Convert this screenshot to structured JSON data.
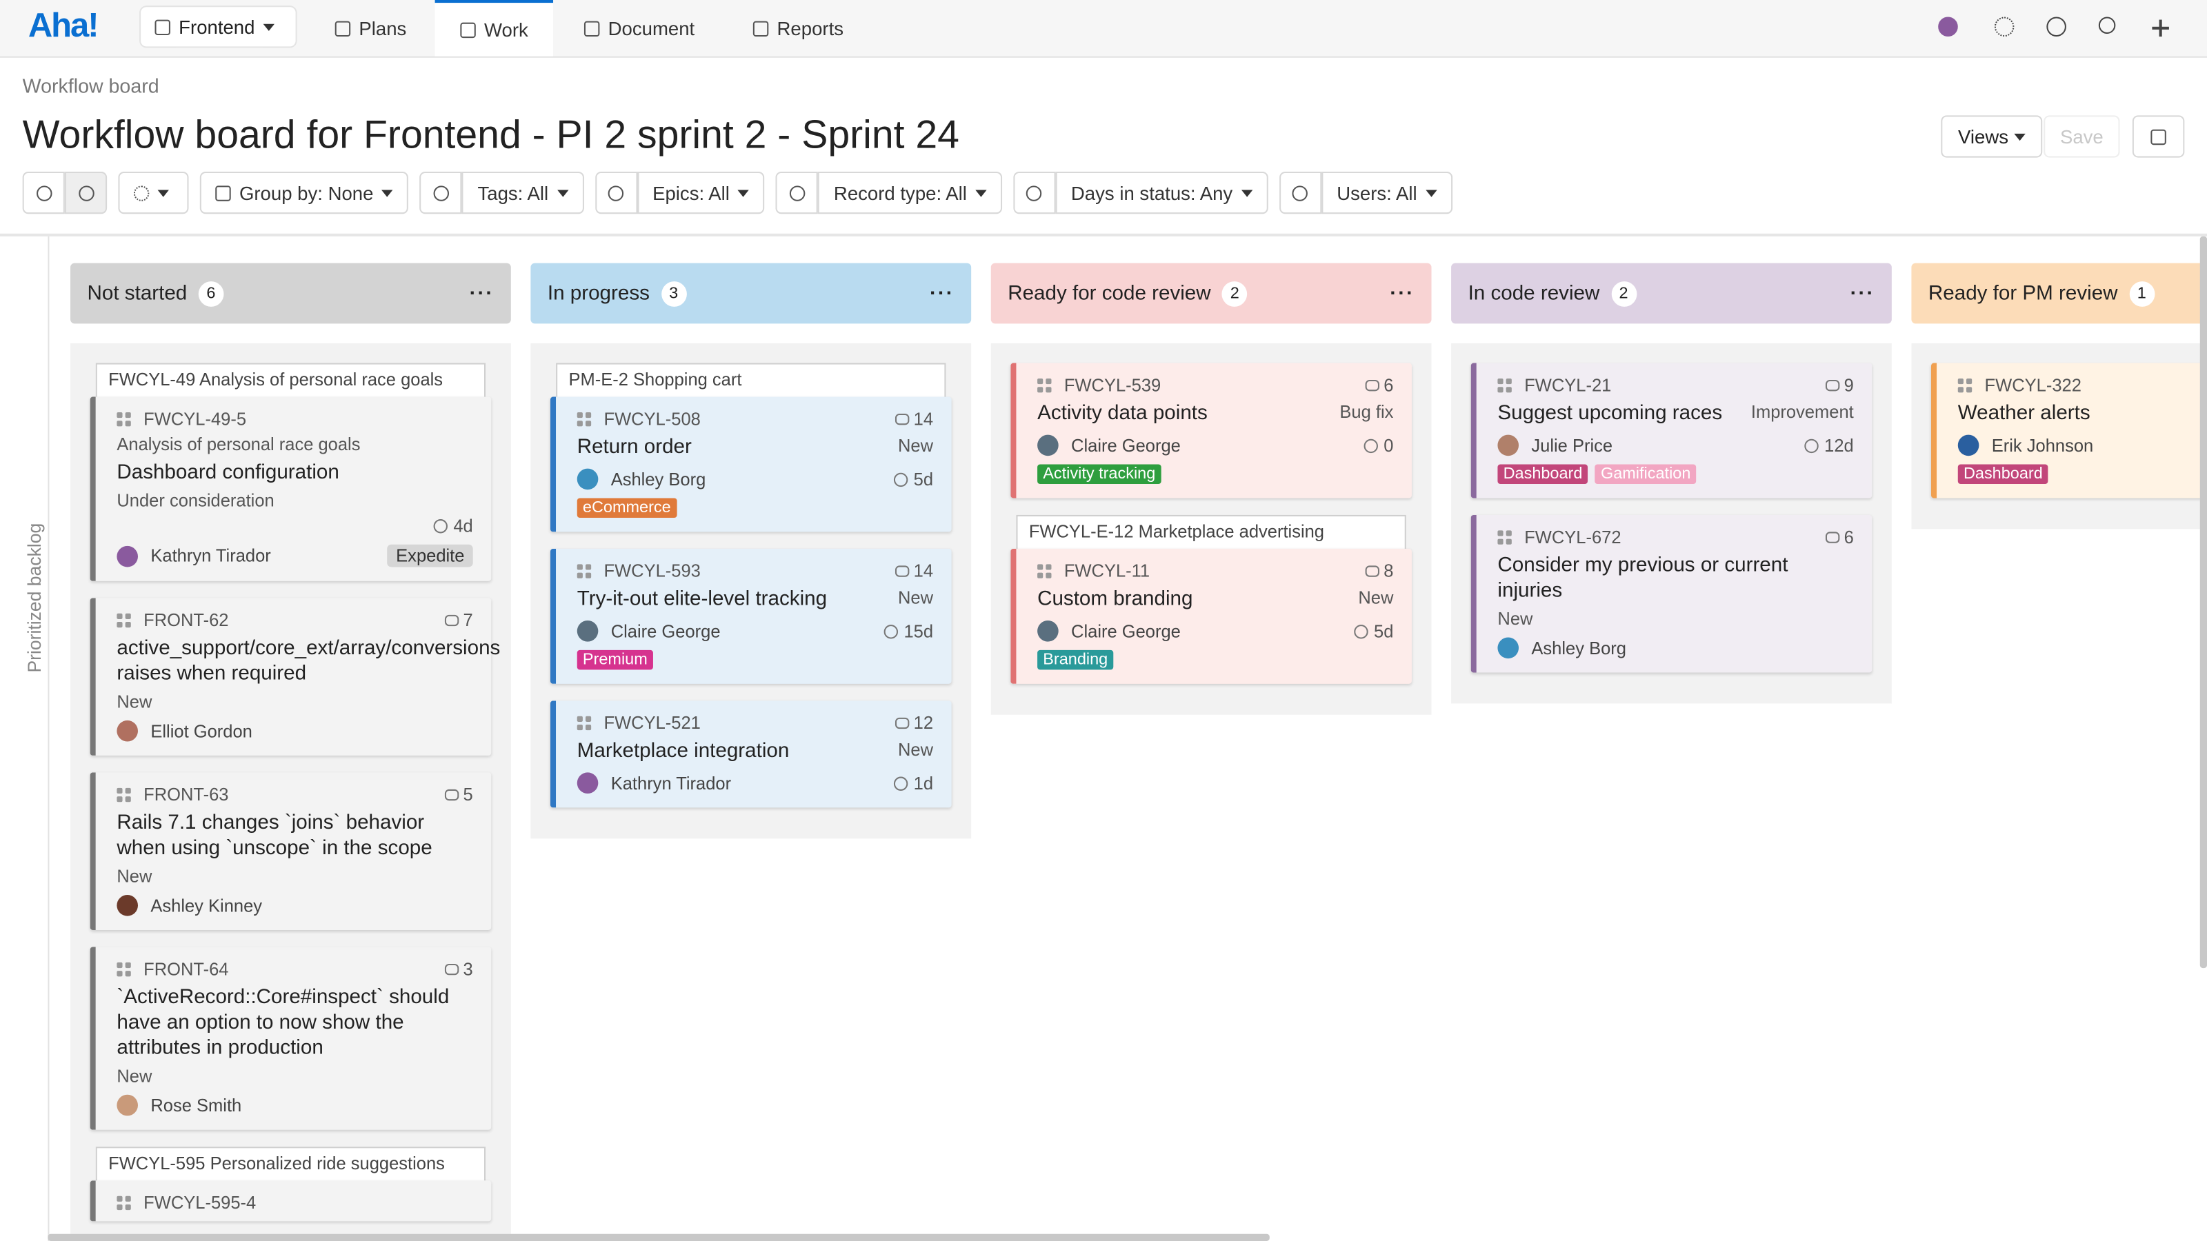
{
  "nav": {
    "logo": "Aha!",
    "workspace": "Frontend",
    "tabs": [
      "Plans",
      "Work",
      "Document",
      "Reports"
    ],
    "active_tab": 1
  },
  "header": {
    "breadcrumb": "Workflow board",
    "title": "Workflow board for Frontend - PI 2 sprint 2 - Sprint 24",
    "views": "Views",
    "save": "Save"
  },
  "filters": [
    "Group by: None",
    "Tags: All",
    "Epics: All",
    "Record type: All",
    "Days in status: Any",
    "Users: All"
  ],
  "sidebar": "Prioritized backlog",
  "columns": [
    {
      "name": "Not started",
      "count": "6",
      "header_color": "#d3d3d3",
      "card_color": "#f3f3f3",
      "accent": "#777777",
      "groups": [
        {
          "parent": "FWCYL-49 Analysis of personal race goals",
          "cards": [
            {
              "id": "FWCYL-49-5",
              "subtitle": "Analysis of personal race goals",
              "title": "Dashboard configuration",
              "status": "Under consideration",
              "days": "4d",
              "assignee": "Kathryn Tirador",
              "avatar": "#8a5a9e",
              "badge": "Expedite"
            }
          ]
        },
        {
          "cards": [
            {
              "id": "FRONT-62",
              "comments": "7",
              "title": "active_support/core_ext/array/conversions raises when required",
              "status": "New",
              "assignee": "Elliot Gordon",
              "avatar": "#b07060"
            },
            {
              "id": "FRONT-63",
              "comments": "5",
              "title": "Rails 7.1 changes `joins` behavior when using `unscope` in the scope",
              "status": "New",
              "assignee": "Ashley Kinney",
              "avatar": "#6b3a2a"
            },
            {
              "id": "FRONT-64",
              "comments": "3",
              "title": "`ActiveRecord::Core#inspect` should have an option to now show the attributes in production",
              "status": "New",
              "assignee": "Rose Smith",
              "avatar": "#c99a7a"
            }
          ]
        },
        {
          "parent": "FWCYL-595 Personalized ride suggestions",
          "cards": [
            {
              "id": "FWCYL-595-4"
            }
          ]
        }
      ]
    },
    {
      "name": "In progress",
      "count": "3",
      "header_color": "#b9dbf0",
      "card_color": "#e5f0f9",
      "accent": "#2f78c4",
      "groups": [
        {
          "parent": "PM-E-2 Shopping cart",
          "cards": [
            {
              "id": "FWCYL-508",
              "comments": "14",
              "title": "Return order",
              "status": "New",
              "days": "5d",
              "assignee": "Ashley Borg",
              "avatar": "#3a8fbf",
              "tags": [
                {
                  "name": "eCommerce",
                  "color": "#e07a3a"
                }
              ]
            }
          ]
        },
        {
          "cards": [
            {
              "id": "FWCYL-593",
              "comments": "14",
              "title": "Try-it-out elite-level tracking",
              "status": "New",
              "days": "15d",
              "assignee": "Claire George",
              "avatar": "#5a6f7f",
              "tags": [
                {
                  "name": "Premium",
                  "color": "#d6338f"
                }
              ]
            },
            {
              "id": "FWCYL-521",
              "comments": "12",
              "title": "Marketplace integration",
              "status": "New",
              "days": "1d",
              "assignee": "Kathryn Tirador",
              "avatar": "#8a5a9e"
            }
          ]
        }
      ]
    },
    {
      "name": "Ready for code review",
      "count": "2",
      "header_color": "#f8d3d3",
      "card_color": "#fdecea",
      "accent": "#e07272",
      "groups": [
        {
          "cards": [
            {
              "id": "FWCYL-539",
              "comments": "6",
              "title": "Activity data points",
              "status": "Bug fix",
              "days": "0",
              "assignee": "Claire George",
              "avatar": "#5a6f7f",
              "tags": [
                {
                  "name": "Activity tracking",
                  "color": "#2e9e3e"
                }
              ]
            }
          ]
        },
        {
          "parent": "FWCYL-E-12 Marketplace advertising",
          "cards": [
            {
              "id": "FWCYL-11",
              "comments": "8",
              "title": "Custom branding",
              "status": "New",
              "days": "5d",
              "assignee": "Claire George",
              "avatar": "#5a6f7f",
              "tags": [
                {
                  "name": "Branding",
                  "color": "#2a9a9a"
                }
              ]
            }
          ]
        }
      ]
    },
    {
      "name": "In code review",
      "count": "2",
      "header_color": "#ddd1e3",
      "card_color": "#f1edf3",
      "accent": "#8b6a9e",
      "groups": [
        {
          "cards": [
            {
              "id": "FWCYL-21",
              "comments": "9",
              "title": "Suggest upcoming races",
              "status": "Improvement",
              "days": "12d",
              "assignee": "Julie Price",
              "avatar": "#b0806a",
              "tags": [
                {
                  "name": "Dashboard",
                  "color": "#c2467a"
                },
                {
                  "name": "Gamification",
                  "color": "#f2a6c2"
                }
              ]
            },
            {
              "id": "FWCYL-672",
              "comments": "6",
              "title": "Consider my previous or current injuries",
              "status": "New",
              "assignee": "Ashley Borg",
              "avatar": "#3a8fbf"
            }
          ]
        }
      ]
    },
    {
      "name": "Ready for PM review",
      "count": "1",
      "header_color": "#fcdcb8",
      "card_color": "#fff3e4",
      "accent": "#f0a050",
      "groups": [
        {
          "cards": [
            {
              "id": "FWCYL-322",
              "title": "Weather alerts",
              "assignee": "Erik Johnson",
              "avatar": "#2a5f9f",
              "tags": [
                {
                  "name": "Dashboard",
                  "color": "#c2467a"
                }
              ]
            }
          ]
        }
      ]
    }
  ]
}
